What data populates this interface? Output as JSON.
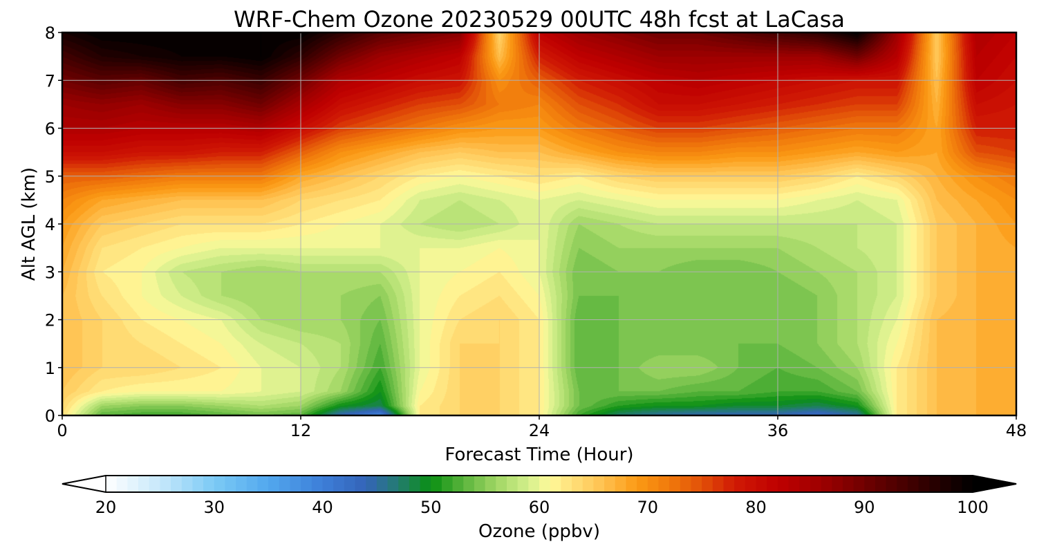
{
  "chart_data": {
    "type": "heatmap",
    "title": "WRF-Chem Ozone  20230529 00UTC 48h fcst at LaCasa",
    "xlabel": "Forecast Time (Hour)",
    "ylabel": "Alt AGL (km)",
    "xlim": [
      0,
      48
    ],
    "ylim": [
      0,
      8
    ],
    "xticks": [
      0,
      12,
      24,
      36,
      48
    ],
    "yticks": [
      0,
      1,
      2,
      3,
      4,
      5,
      6,
      7,
      8
    ],
    "grid": true,
    "x": [
      0,
      2,
      4,
      6,
      8,
      10,
      12,
      14,
      16,
      18,
      20,
      22,
      24,
      26,
      28,
      30,
      32,
      34,
      36,
      38,
      40,
      42,
      44,
      46,
      48
    ],
    "y": [
      0,
      0.2,
      0.5,
      1,
      1.5,
      2,
      2.5,
      3,
      3.5,
      4,
      4.5,
      5,
      5.5,
      6,
      6.5,
      7,
      7.5,
      8
    ],
    "z": [
      [
        63,
        53,
        52,
        52,
        53,
        54,
        53,
        44,
        39,
        62,
        64,
        64,
        62,
        52,
        47,
        45,
        44,
        44,
        44,
        42,
        45,
        62,
        66,
        67,
        68
      ],
      [
        64,
        56,
        55,
        55,
        56,
        57,
        56,
        50,
        48,
        62,
        64,
        64,
        62,
        54,
        51,
        50,
        50,
        49,
        49,
        48,
        50,
        62,
        66,
        67,
        68
      ],
      [
        65,
        62,
        61,
        61,
        61,
        60,
        59,
        56,
        50,
        61,
        64,
        64,
        62,
        54,
        54,
        54,
        53,
        53,
        52,
        52,
        54,
        62,
        66,
        67,
        68
      ],
      [
        66,
        64,
        64,
        63,
        62,
        60,
        59,
        57,
        52,
        60,
        64,
        64,
        62,
        53,
        54,
        56,
        56,
        54,
        53,
        54,
        56,
        62,
        66,
        67,
        68
      ],
      [
        66,
        64,
        63,
        62,
        61,
        59,
        58,
        57,
        53,
        60,
        64,
        64,
        62,
        53,
        54,
        54,
        54,
        54,
        54,
        55,
        57,
        61,
        66,
        67,
        68
      ],
      [
        66,
        64,
        62,
        61,
        60,
        57,
        56,
        56,
        54,
        60,
        63,
        64,
        62,
        53,
        54,
        54,
        54,
        54,
        54,
        55,
        57,
        60,
        66,
        67,
        68
      ],
      [
        66,
        63,
        61,
        59,
        57,
        56,
        56,
        56,
        55,
        60,
        62,
        63,
        61,
        54,
        54,
        54,
        54,
        54,
        54,
        55,
        57,
        59,
        65,
        67,
        68
      ],
      [
        67,
        62,
        61,
        58,
        57,
        56,
        57,
        57,
        57,
        60,
        61,
        62,
        60,
        54,
        55,
        55,
        54,
        54,
        55,
        56,
        57,
        59,
        65,
        67,
        68
      ],
      [
        68,
        63,
        62,
        61,
        60,
        60,
        60,
        60,
        60,
        60,
        60,
        61,
        60,
        55,
        56,
        56,
        56,
        56,
        56,
        57,
        58,
        59,
        65,
        67,
        68
      ],
      [
        69,
        65,
        64,
        63,
        63,
        63,
        62,
        61,
        60,
        58,
        57,
        58,
        60,
        56,
        57,
        58,
        58,
        58,
        58,
        58,
        58,
        59,
        65,
        67,
        69
      ],
      [
        71,
        68,
        67,
        66,
        66,
        66,
        64,
        63,
        62,
        59,
        58,
        59,
        60,
        59,
        60,
        61,
        61,
        61,
        61,
        60,
        59,
        60,
        66,
        68,
        70
      ],
      [
        74,
        74,
        73,
        72,
        72,
        72,
        68,
        66,
        64,
        62,
        61,
        62,
        63,
        62,
        64,
        65,
        65,
        65,
        65,
        64,
        62,
        64,
        67,
        70,
        72
      ],
      [
        80,
        80,
        79,
        79,
        78,
        78,
        74,
        70,
        68,
        66,
        65,
        66,
        66,
        68,
        70,
        71,
        71,
        70,
        70,
        69,
        68,
        69,
        68,
        75,
        76
      ],
      [
        84,
        84,
        83,
        83,
        83,
        84,
        80,
        76,
        74,
        72,
        70,
        69,
        69,
        72,
        74,
        76,
        76,
        75,
        74,
        73,
        72,
        72,
        68,
        78,
        78
      ],
      [
        86,
        87,
        86,
        88,
        88,
        90,
        85,
        80,
        78,
        76,
        75,
        72,
        71,
        75,
        77,
        80,
        80,
        79,
        78,
        77,
        76,
        76,
        67,
        80,
        79
      ],
      [
        90,
        92,
        91,
        94,
        93,
        95,
        90,
        84,
        82,
        80,
        79,
        70,
        74,
        78,
        80,
        82,
        83,
        82,
        81,
        80,
        79,
        79,
        66,
        82,
        80
      ],
      [
        94,
        97,
        98,
        99,
        99,
        100,
        96,
        90,
        86,
        84,
        82,
        66,
        78,
        82,
        84,
        86,
        86,
        86,
        86,
        86,
        90,
        83,
        65,
        83,
        81
      ],
      [
        98,
        100,
        100,
        100,
        100,
        100,
        100,
        96,
        92,
        90,
        88,
        64,
        82,
        86,
        88,
        90,
        90,
        92,
        94,
        96,
        100,
        86,
        65,
        84,
        82
      ]
    ],
    "colorbar": {
      "label": "Ozone  (ppbv)",
      "min": 20,
      "max": 100,
      "ticks": [
        20,
        30,
        40,
        50,
        60,
        70,
        80,
        90,
        100
      ],
      "extend": "both",
      "levels": 80
    }
  },
  "colors": {
    "scale_stops": [
      {
        "v": 20,
        "c": "#ffffff"
      },
      {
        "v": 25,
        "c": "#c6e8fb"
      },
      {
        "v": 30,
        "c": "#7ccaf5"
      },
      {
        "v": 35,
        "c": "#52a8ee"
      },
      {
        "v": 40,
        "c": "#3d7ed8"
      },
      {
        "v": 44,
        "c": "#3464b8"
      },
      {
        "v": 47,
        "c": "#237c70"
      },
      {
        "v": 50,
        "c": "#0a8f12"
      },
      {
        "v": 53,
        "c": "#5ab43c"
      },
      {
        "v": 56,
        "c": "#9fd663"
      },
      {
        "v": 59,
        "c": "#d4ef8c"
      },
      {
        "v": 61,
        "c": "#fff99a"
      },
      {
        "v": 63,
        "c": "#ffe07a"
      },
      {
        "v": 66,
        "c": "#ffbf4e"
      },
      {
        "v": 69,
        "c": "#fb9a14"
      },
      {
        "v": 72,
        "c": "#f07a0c"
      },
      {
        "v": 75,
        "c": "#e25008"
      },
      {
        "v": 78,
        "c": "#d01a04"
      },
      {
        "v": 82,
        "c": "#bf0000"
      },
      {
        "v": 86,
        "c": "#9e0000"
      },
      {
        "v": 90,
        "c": "#700000"
      },
      {
        "v": 95,
        "c": "#380000"
      },
      {
        "v": 100,
        "c": "#000000"
      }
    ]
  }
}
